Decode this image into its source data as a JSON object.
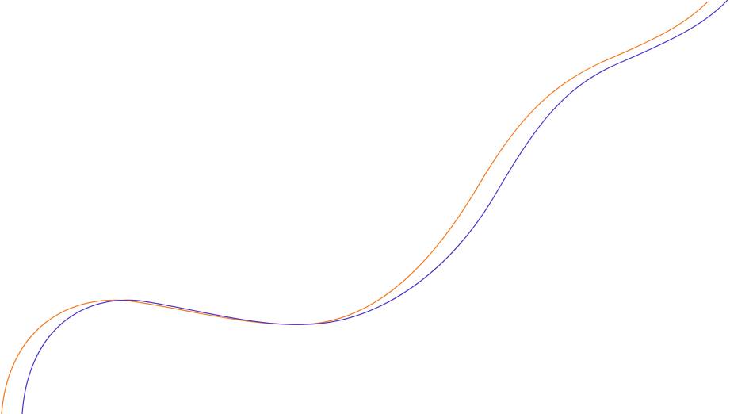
{
  "curves": [
    {
      "id": "orange-curve",
      "color": "#f5761a"
    },
    {
      "id": "blue-curve",
      "color": "#4a2fc8"
    }
  ],
  "background": "#ffffff"
}
